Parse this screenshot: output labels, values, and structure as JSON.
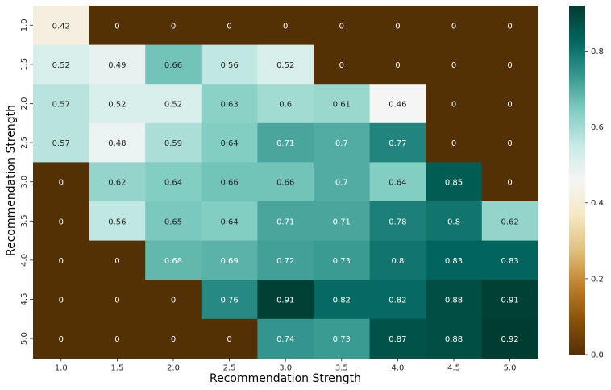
{
  "chart_data": {
    "type": "heatmap",
    "title": "",
    "xlabel": "Recommendation Strength",
    "ylabel": "Recommendation Strength",
    "x_categories": [
      "1.0",
      "1.5",
      "2.0",
      "2.5",
      "3.0",
      "3.5",
      "4.0",
      "4.5",
      "5.0"
    ],
    "y_categories": [
      "1.0",
      "1.5",
      "2.0",
      "2.5",
      "3.0",
      "3.5",
      "4.0",
      "4.5",
      "5.0"
    ],
    "values": [
      [
        0.42,
        0,
        0,
        0,
        0,
        0,
        0,
        0,
        0
      ],
      [
        0.52,
        0.49,
        0.66,
        0.56,
        0.52,
        0,
        0,
        0,
        0
      ],
      [
        0.57,
        0.52,
        0.52,
        0.63,
        0.6,
        0.61,
        0.46,
        0,
        0
      ],
      [
        0.57,
        0.48,
        0.59,
        0.64,
        0.71,
        0.7,
        0.77,
        0,
        0
      ],
      [
        0,
        0.62,
        0.64,
        0.66,
        0.66,
        0.7,
        0.64,
        0.85,
        0
      ],
      [
        0,
        0.56,
        0.65,
        0.64,
        0.71,
        0.71,
        0.78,
        0.8,
        0.62
      ],
      [
        0,
        0,
        0.68,
        0.69,
        0.72,
        0.73,
        0.8,
        0.83,
        0.83
      ],
      [
        0,
        0,
        0,
        0.76,
        0.91,
        0.82,
        0.82,
        0.88,
        0.91
      ],
      [
        0,
        0,
        0,
        0,
        0.74,
        0.73,
        0.87,
        0.88,
        0.92
      ]
    ],
    "colormap": "BrBG",
    "vmin": 0.0,
    "vmax": 0.92,
    "colorbar_ticks": [
      "0.0",
      "0.2",
      "0.4",
      "0.6",
      "0.8"
    ],
    "grid": false,
    "colors": {
      "low": "#543005",
      "mid": "#f5f5f5",
      "high": "#003c30",
      "text_dark": "#262626",
      "text_light": "#ffffff"
    }
  }
}
